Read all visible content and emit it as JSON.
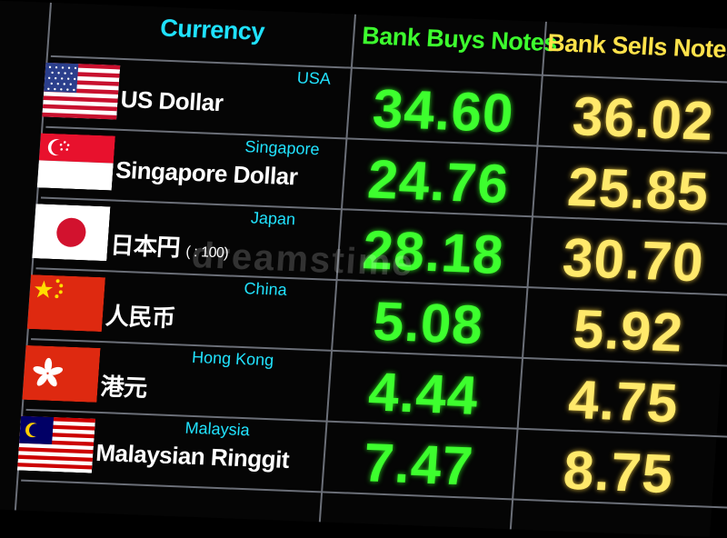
{
  "headers": {
    "currency": "Currency",
    "buy": "Bank Buys Notes",
    "sell": "Bank Sells Notes"
  },
  "colors": {
    "background": "#050505",
    "currency_header": "#1fe2ff",
    "buy_header": "#3dff2e",
    "sell_header": "#ffe24a",
    "buy_values": "#3dff2e",
    "sell_values": "#ffe96b",
    "country_labels": "#21e3ff"
  },
  "rows": [
    {
      "flag": "usa-flag-icon",
      "name": "US Dollar",
      "unit": "",
      "country": "USA",
      "buy": "34.60",
      "sell": "36.02"
    },
    {
      "flag": "singapore-flag-icon",
      "name": "Singapore Dollar",
      "unit": "",
      "country": "Singapore",
      "buy": "24.76",
      "sell": "25.85"
    },
    {
      "flag": "japan-flag-icon",
      "name": "日本円",
      "unit": "( : 100)",
      "country": "Japan",
      "buy": "28.18",
      "sell": "30.70"
    },
    {
      "flag": "china-flag-icon",
      "name": "人民币",
      "unit": "",
      "country": "China",
      "buy": "5.08",
      "sell": "5.92"
    },
    {
      "flag": "hongkong-flag-icon",
      "name": "港元",
      "unit": "",
      "country": "Hong Kong",
      "buy": "4.44",
      "sell": "4.75"
    },
    {
      "flag": "malaysia-flag-icon",
      "name": "Malaysian Ringgit",
      "unit": "",
      "country": "Malaysia",
      "buy": "7.47",
      "sell": "8.75"
    }
  ],
  "watermark": "dreamstime"
}
